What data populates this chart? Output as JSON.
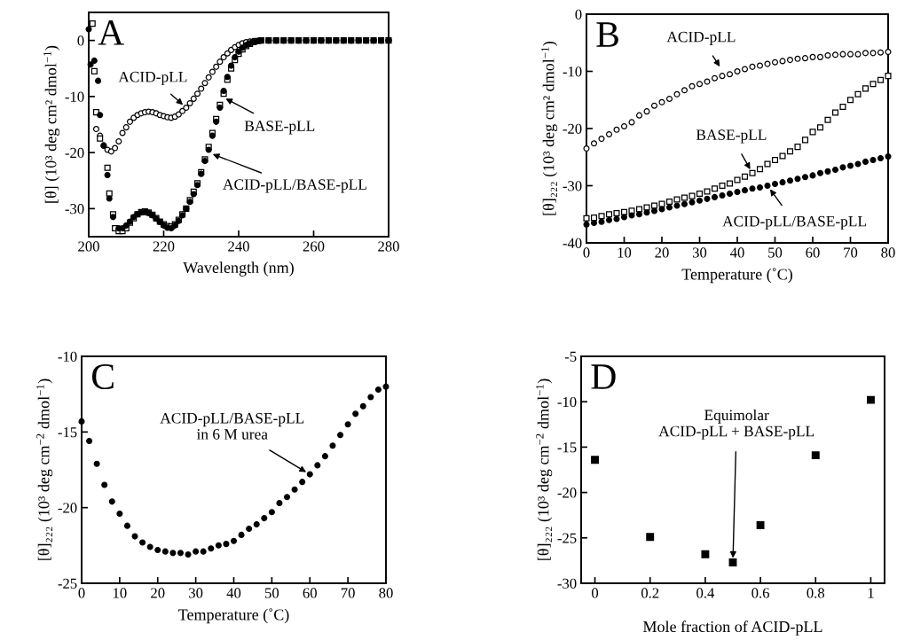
{
  "chart_data": [
    {
      "type": "scatter",
      "xlabel": "Wavelength (nm)",
      "ylabel": "[θ] (10³ deg cm² dmol$^{−1}$)",
      "xlim": [
        200,
        280
      ],
      "ylim": [
        -35,
        5
      ],
      "xticks": [
        200,
        220,
        240,
        260,
        280
      ],
      "yticks": [
        -30,
        -20,
        -10,
        0
      ],
      "grid": false,
      "legend": false,
      "annotations": [
        "A",
        {
          "text": "ACID-pLL",
          "x": 226,
          "y": -12
        },
        {
          "text": "BASE-pLL",
          "x": 235.5,
          "y": -10
        },
        {
          "text": "ACID-pLL/BASE-pLL",
          "x": 232,
          "y": -20
        }
      ],
      "series": [
        {
          "color": "#ffffff",
          "marker": "circle",
          "x": [
            202,
            203,
            204,
            205,
            206,
            207,
            208,
            209,
            210,
            211,
            212,
            213,
            214,
            215,
            216,
            217,
            218,
            219,
            220,
            221,
            222,
            223,
            224,
            225,
            226,
            227,
            228,
            229,
            230,
            231,
            232,
            233,
            234,
            235,
            236,
            237,
            238,
            239,
            240,
            241,
            242,
            243,
            244,
            246,
            248,
            250,
            252,
            254,
            256,
            258,
            260,
            262,
            264,
            266,
            268,
            270,
            272,
            274,
            276,
            278,
            280
          ],
          "values": [
            -15.8,
            -17,
            -18.8,
            -19.5,
            -19.8,
            -19.2,
            -18,
            -16.5,
            -15.5,
            -14.5,
            -13.8,
            -13.3,
            -13,
            -12.8,
            -12.7,
            -12.8,
            -13,
            -13.3,
            -13.5,
            -13.7,
            -13.8,
            -13.6,
            -13.2,
            -12.6,
            -12,
            -11.2,
            -10.4,
            -9.5,
            -8.6,
            -7.6,
            -6.6,
            -5.6,
            -4.7,
            -3.8,
            -3,
            -2.3,
            -1.7,
            -1.2,
            -0.8,
            -0.5,
            -0.3,
            -0.2,
            -0.1,
            0,
            0,
            0,
            0,
            0,
            0,
            0,
            0,
            0,
            0,
            0,
            0,
            0,
            0,
            0,
            0,
            0,
            0
          ]
        },
        {
          "color": "#ffffff",
          "marker": "square",
          "x": [
            201,
            201.5,
            202,
            203,
            205,
            205.5,
            206.5,
            207,
            208,
            209,
            210,
            211,
            212,
            213,
            214,
            215,
            216,
            217,
            218,
            219,
            220,
            221,
            222,
            223,
            224,
            225,
            226,
            227,
            228,
            229,
            230,
            231,
            232,
            233,
            234,
            235,
            236,
            237,
            238,
            239,
            240,
            241,
            242,
            243,
            244,
            245,
            246,
            248,
            250,
            252,
            254,
            256,
            258,
            260,
            262,
            264,
            266,
            268,
            270,
            272,
            274,
            276,
            278,
            280
          ],
          "values": [
            3,
            -5.5,
            -12.8,
            -17.5,
            -22.7,
            -27.3,
            -31,
            -33.5,
            -34,
            -34,
            -33.5,
            -32.5,
            -31.7,
            -31,
            -30.6,
            -30.5,
            -30.7,
            -31.1,
            -31.7,
            -32.3,
            -32.8,
            -33.1,
            -33.2,
            -32.8,
            -32,
            -31,
            -30,
            -28.5,
            -27,
            -25.5,
            -23.5,
            -21.2,
            -19,
            -16.5,
            -14,
            -11.5,
            -9.5,
            -7,
            -5,
            -3.5,
            -2.4,
            -1.6,
            -1,
            -0.6,
            -0.3,
            -0.1,
            0,
            0,
            0,
            0,
            0,
            0,
            0,
            0,
            0,
            0,
            0,
            0,
            0,
            0,
            0,
            0,
            0,
            0
          ]
        },
        {
          "color": "#000000",
          "marker": "circle",
          "x": [
            200,
            200.5,
            201.5,
            202.5,
            203,
            204,
            205,
            205.5,
            206.5,
            208,
            209,
            210,
            211,
            212,
            213,
            214,
            215,
            216,
            217,
            218,
            219,
            220,
            221,
            222,
            223,
            224,
            225,
            226,
            227,
            228,
            229,
            230,
            231,
            232,
            233,
            234,
            235,
            236,
            237,
            238,
            239,
            240,
            241,
            242,
            243,
            244,
            245,
            246,
            248,
            250,
            252,
            254,
            256,
            258,
            260,
            262,
            264,
            266,
            268,
            270,
            272,
            274,
            276,
            278,
            280
          ],
          "values": [
            2,
            -4.3,
            -3.6,
            -7.2,
            -13.3,
            -18.7,
            -24,
            -28.2,
            -31.5,
            -33.5,
            -33.5,
            -33,
            -32.3,
            -31.5,
            -31,
            -30.7,
            -30.6,
            -30.8,
            -31.2,
            -31.8,
            -32.4,
            -33,
            -33.4,
            -33.5,
            -33,
            -32.2,
            -31.2,
            -30,
            -28.8,
            -27.4,
            -25.8,
            -23.8,
            -21.5,
            -19.5,
            -17,
            -14.5,
            -12,
            -9,
            -6.5,
            -4.5,
            -3,
            -2,
            -1.3,
            -0.8,
            -0.5,
            -0.3,
            -0.1,
            0,
            0,
            0,
            0,
            0,
            0,
            0,
            0,
            0,
            0,
            0,
            0,
            0,
            0,
            0,
            0,
            0,
            0
          ]
        }
      ]
    },
    {
      "type": "scatter",
      "xlabel": "Temperature (˚C)",
      "ylabel": "[θ]₂₂₂ (10³ deg cm² dmol$^{−1}$)",
      "xlim": [
        0,
        80
      ],
      "ylim": [
        -40,
        0
      ],
      "xticks": [
        0,
        10,
        20,
        30,
        40,
        50,
        60,
        70,
        80
      ],
      "yticks": [
        -40,
        -30,
        -20,
        -10,
        0
      ],
      "grid": false,
      "legend": false,
      "x": [
        0,
        2,
        4,
        6,
        8,
        10,
        12,
        14,
        16,
        18,
        20,
        22,
        24,
        26,
        28,
        30,
        32,
        34,
        36,
        38,
        40,
        42,
        44,
        46,
        48,
        50,
        52,
        54,
        56,
        58,
        60,
        62,
        64,
        66,
        68,
        70,
        72,
        74,
        76,
        78,
        80
      ],
      "annotations": [
        "B",
        {
          "text": "ACID-pLL",
          "x": 36,
          "y": -9.8
        },
        {
          "text": "BASE-pLL",
          "x": 44,
          "y": -27.8
        },
        {
          "text": "ACID-pLL/BASE-pLL",
          "x": 48,
          "y": -30
        }
      ],
      "series": [
        {
          "color": "#ffffff",
          "marker": "circle",
          "values": [
            -23.5,
            -22.6,
            -21.8,
            -21,
            -20.2,
            -19.6,
            -18.9,
            -17.7,
            -17,
            -16,
            -15.4,
            -14.8,
            -14,
            -13.3,
            -12.6,
            -12.2,
            -11.8,
            -11.2,
            -10.8,
            -10.5,
            -10,
            -9.6,
            -9.2,
            -9,
            -8.7,
            -8.4,
            -8.2,
            -8,
            -7.8,
            -7.7,
            -7.5,
            -7.5,
            -7.2,
            -7.1,
            -7,
            -7,
            -7,
            -6.8,
            -6.8,
            -6.7,
            -6.6
          ]
        },
        {
          "color": "#ffffff",
          "marker": "square",
          "values": [
            -35.7,
            -35.6,
            -35.3,
            -35,
            -34.8,
            -34.6,
            -34.4,
            -34.1,
            -33.8,
            -33.5,
            -33.2,
            -32.8,
            -32.4,
            -32.1,
            -31.8,
            -31.4,
            -31,
            -30.5,
            -30,
            -29.6,
            -29,
            -28.4,
            -27.8,
            -27.1,
            -26.2,
            -25.5,
            -24.8,
            -24,
            -23.2,
            -22,
            -20.6,
            -19.8,
            -18.5,
            -17.2,
            -16.2,
            -15,
            -14,
            -13,
            -12.2,
            -11.5,
            -10.8
          ]
        },
        {
          "color": "#000000",
          "marker": "circle",
          "values": [
            -36.8,
            -36.5,
            -36.3,
            -36,
            -35.8,
            -35.5,
            -35.2,
            -35,
            -34.7,
            -34.4,
            -34.1,
            -33.8,
            -33.5,
            -33.2,
            -32.9,
            -32.6,
            -32.3,
            -32,
            -31.7,
            -31.4,
            -31.1,
            -30.8,
            -30.5,
            -30.3,
            -30,
            -29.7,
            -29.4,
            -29.1,
            -28.8,
            -28.5,
            -28.2,
            -27.8,
            -27.5,
            -27.2,
            -26.8,
            -26.5,
            -26.2,
            -25.8,
            -25.5,
            -25.2,
            -24.9
          ]
        }
      ]
    },
    {
      "type": "scatter",
      "xlabel": "Temperature (˚C)",
      "xlim": [
        0,
        80
      ],
      "ylim": [
        -25,
        -10
      ],
      "xticks": [
        0,
        10,
        20,
        30,
        40,
        50,
        60,
        70,
        80
      ],
      "yticks": [
        -25,
        -20,
        -15,
        -10
      ],
      "grid": false,
      "legend": false,
      "ylabel": "[θ]₂₂₂ (10³ deg cm$^{−2}$ dmol$^{−1}$)",
      "x": [
        0,
        2,
        4,
        6,
        8,
        10,
        12,
        14,
        16,
        18,
        20,
        22,
        24,
        26,
        28,
        30,
        32,
        34,
        36,
        38,
        40,
        42,
        44,
        46,
        48,
        50,
        52,
        54,
        56,
        58,
        60,
        62,
        64,
        66,
        68,
        70,
        72,
        74,
        76,
        78,
        80
      ],
      "annotations": [
        "C",
        {
          "text": "ACID-pLL/BASE-pLL\nin 6 M urea",
          "x": 60,
          "y": -17.8
        }
      ],
      "series": [
        {
          "color": "#000000",
          "marker": "circle",
          "values": [
            -14.3,
            -15.6,
            -17.1,
            -18.5,
            -19.6,
            -20.4,
            -21.2,
            -21.9,
            -22.3,
            -22.6,
            -22.8,
            -22.9,
            -23,
            -23,
            -23.1,
            -22.9,
            -22.9,
            -22.7,
            -22.5,
            -22.4,
            -22.2,
            -21.8,
            -21.4,
            -21.1,
            -20.7,
            -20.3,
            -19.7,
            -19.3,
            -18.8,
            -18.3,
            -17.8,
            -17.2,
            -16.6,
            -15.9,
            -15.2,
            -14.5,
            -13.8,
            -13.3,
            -12.7,
            -12.2,
            -12
          ]
        }
      ]
    },
    {
      "type": "scatter",
      "xlabel": "Mole fraction of ACID-pLL",
      "ylabel": "[θ]₂₂₂ (10³ deg cm$^{−2}$ dmol$^{−1}$)",
      "xlim": [
        -0.05,
        1.05
      ],
      "ylim": [
        -30,
        -5
      ],
      "xticks": [
        0,
        0.2,
        0.4,
        0.6,
        0.8,
        1
      ],
      "yticks": [
        -30,
        -25,
        -20,
        -15,
        -10,
        -5
      ],
      "grid": false,
      "legend": false,
      "x": [
        0,
        0.2,
        0.4,
        0.5,
        0.6,
        0.8,
        1
      ],
      "annotations": [
        "D",
        {
          "text": "Equimolar\nACID-pLL + BASE-pLL",
          "x": 0.5,
          "y": -27.7
        }
      ],
      "series": [
        {
          "color": "#000000",
          "marker": "square",
          "values": [
            -16.4,
            -24.9,
            -26.8,
            -27.7,
            -23.6,
            -15.9,
            -9.8
          ]
        }
      ]
    }
  ]
}
